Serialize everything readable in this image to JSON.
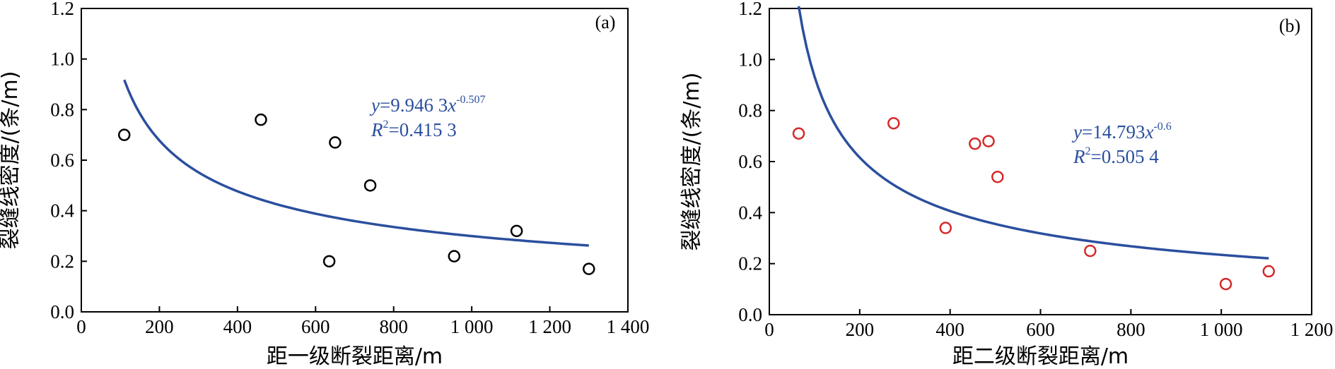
{
  "chart_data": [
    {
      "type": "scatter",
      "panel_label": "(a)",
      "xlabel": "距一级断裂距离/m",
      "ylabel": "裂缝线密度/(条/m)",
      "xlim": [
        0,
        1400
      ],
      "ylim": [
        0,
        1.2
      ],
      "xticks": [
        0,
        200,
        400,
        600,
        800,
        1000,
        1200,
        1400
      ],
      "xtick_labels": [
        "0",
        "200",
        "400",
        "600",
        "800",
        "1 000",
        "1 200",
        "1 400"
      ],
      "yticks": [
        0,
        0.2,
        0.4,
        0.6,
        0.8,
        1.0,
        1.2
      ],
      "ytick_labels": [
        "0.0",
        "0.2",
        "0.4",
        "0.6",
        "0.8",
        "1.0",
        "1.2"
      ],
      "marker_color": "#000000",
      "curve_color": "#2b4f9e",
      "points": [
        {
          "x": 110,
          "y": 0.7
        },
        {
          "x": 460,
          "y": 0.76
        },
        {
          "x": 650,
          "y": 0.67
        },
        {
          "x": 635,
          "y": 0.2
        },
        {
          "x": 740,
          "y": 0.5
        },
        {
          "x": 955,
          "y": 0.22
        },
        {
          "x": 1115,
          "y": 0.32
        },
        {
          "x": 1300,
          "y": 0.17
        }
      ],
      "fit": {
        "a": 9.9463,
        "b": -0.507,
        "x_range": [
          110,
          1300
        ]
      },
      "equation": {
        "y": "y",
        "eq": "=9.946 3",
        "x": "x",
        "exp": "-0.507",
        "r": "R",
        "r_exp": "2",
        "r_val": "=0.415 3"
      }
    },
    {
      "type": "scatter",
      "panel_label": "(b)",
      "xlabel": "距二级断裂距离/m",
      "ylabel": "裂缝线密度/(条/m)",
      "xlim": [
        0,
        1200
      ],
      "ylim": [
        0,
        1.2
      ],
      "xticks": [
        0,
        200,
        400,
        600,
        800,
        1000,
        1200
      ],
      "xtick_labels": [
        "0",
        "200",
        "400",
        "600",
        "800",
        "1 000",
        "1 200"
      ],
      "yticks": [
        0,
        0.2,
        0.4,
        0.6,
        0.8,
        1.0,
        1.2
      ],
      "ytick_labels": [
        "0.0",
        "0.2",
        "0.4",
        "0.6",
        "0.8",
        "1.0",
        "1.2"
      ],
      "marker_color": "#d42a2a",
      "curve_color": "#2b4f9e",
      "points": [
        {
          "x": 65,
          "y": 0.71
        },
        {
          "x": 275,
          "y": 0.75
        },
        {
          "x": 390,
          "y": 0.34
        },
        {
          "x": 455,
          "y": 0.67
        },
        {
          "x": 485,
          "y": 0.68
        },
        {
          "x": 505,
          "y": 0.54
        },
        {
          "x": 710,
          "y": 0.25
        },
        {
          "x": 1010,
          "y": 0.12
        },
        {
          "x": 1105,
          "y": 0.17
        }
      ],
      "fit": {
        "a": 14.793,
        "b": -0.6,
        "x_range": [
          65,
          1105
        ]
      },
      "equation": {
        "y": "y",
        "eq": "=14.793",
        "x": "x",
        "exp": "-0.6",
        "r": "R",
        "r_exp": "2",
        "r_val": "=0.505 4"
      }
    }
  ]
}
